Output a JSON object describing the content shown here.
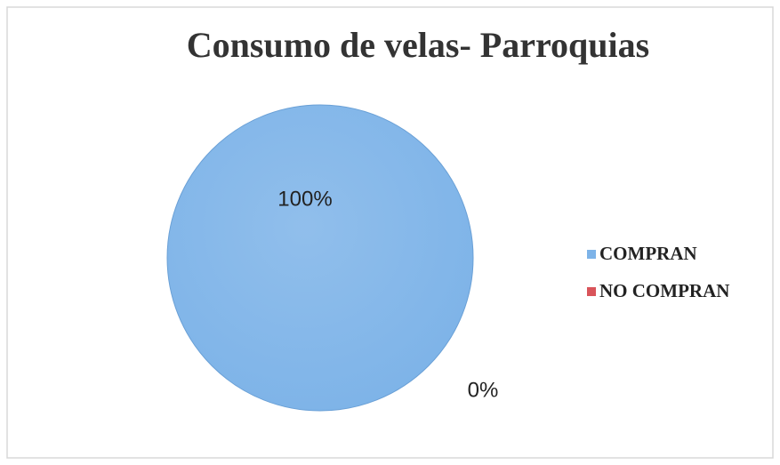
{
  "chart_data": {
    "type": "pie",
    "title": "Consumo de velas- Parroquias",
    "categories": [
      "COMPRAN",
      "NO COMPRAN"
    ],
    "values": [
      100,
      0
    ],
    "value_labels": [
      "100%",
      "0%"
    ],
    "colors": [
      "#7db3e8",
      "#d9545a"
    ],
    "legend": "right"
  }
}
